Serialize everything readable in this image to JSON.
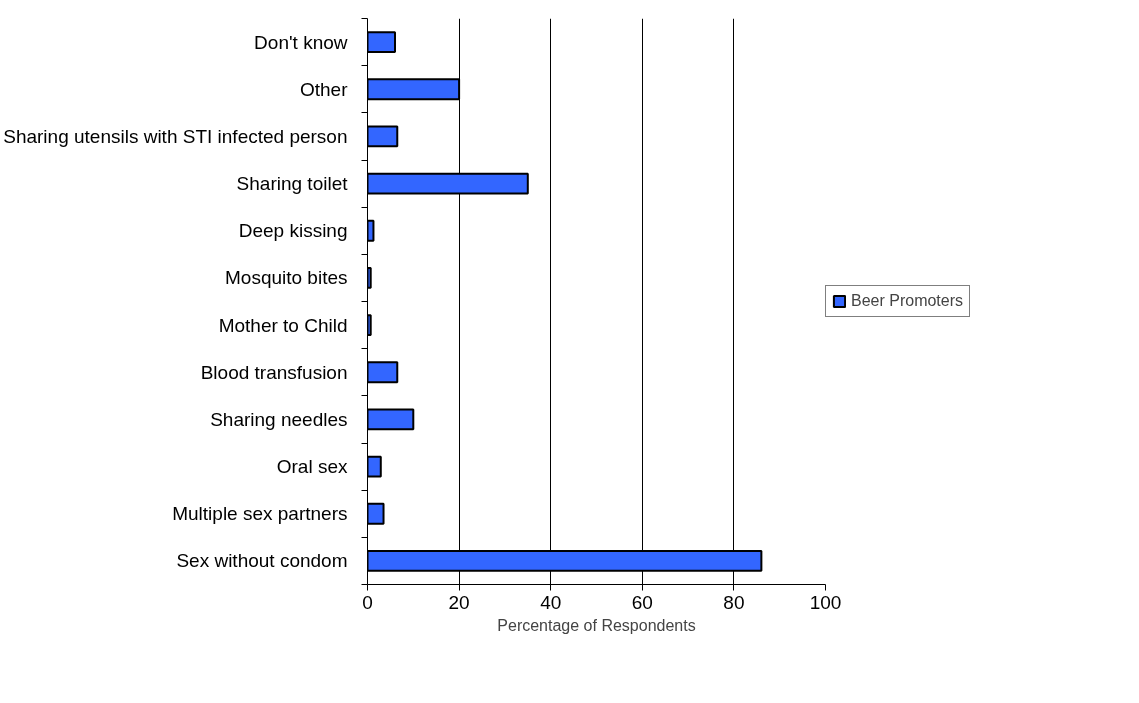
{
  "chart_data": {
    "type": "bar",
    "orientation": "horizontal",
    "xlabel": "Percentage of Respondents",
    "categories": [
      "Don't know",
      "Other",
      "Sharing utensils with STI infected person",
      "Sharing toilet",
      "Deep kissing",
      "Mosquito bites",
      "Mother to Child",
      "Blood transfusion",
      "Sharing needles",
      "Oral sex",
      "Multiple sex partners",
      "Sex without condom"
    ],
    "series": [
      {
        "name": "Beer Promoters",
        "color": "#3366ff",
        "values": [
          6,
          20,
          6.5,
          35,
          1.3,
          0.7,
          0.7,
          6.5,
          10,
          2.9,
          3.5,
          86
        ]
      }
    ],
    "xlim": [
      0,
      100
    ],
    "xticks": [
      0,
      20,
      40,
      60,
      80,
      100
    ],
    "grid": "x",
    "legend": "right"
  }
}
